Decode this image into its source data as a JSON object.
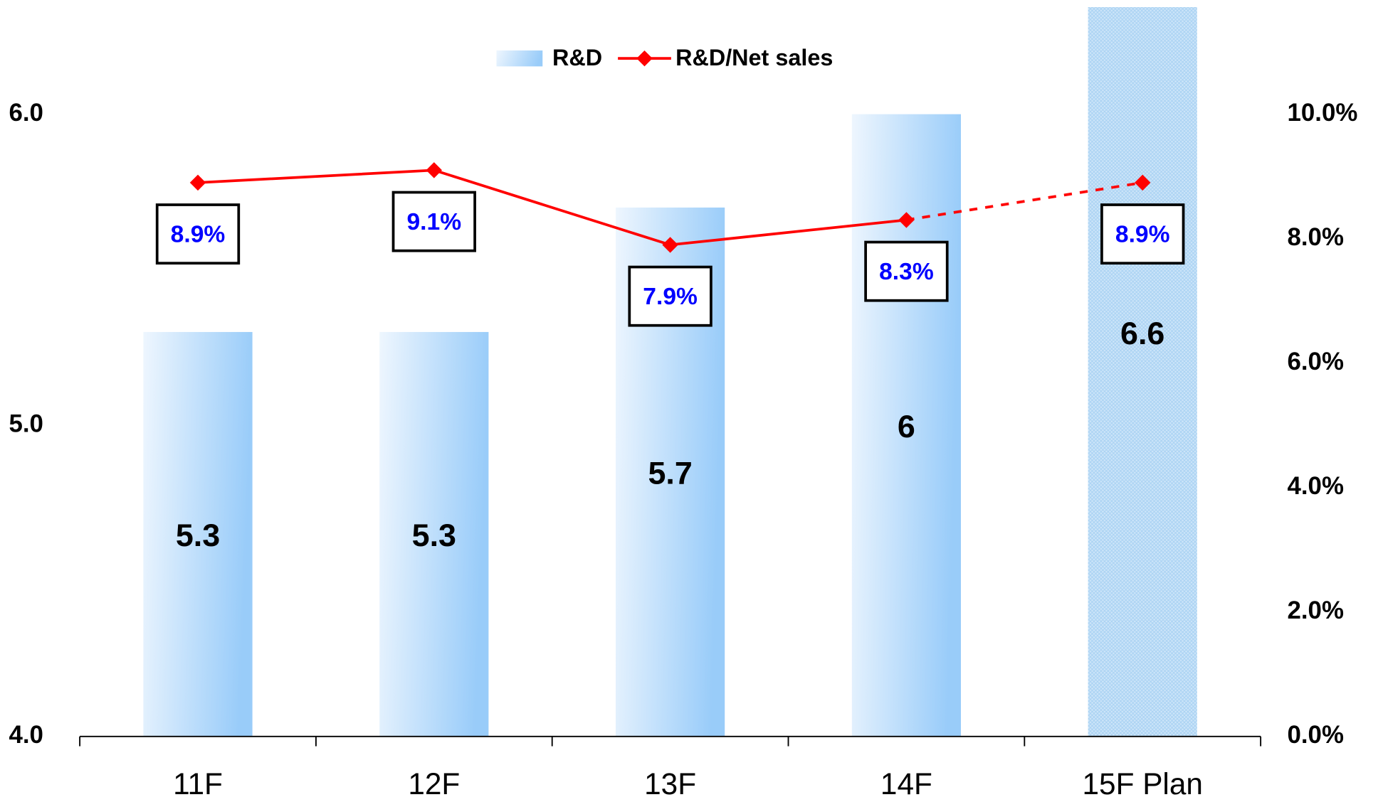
{
  "chart_data": {
    "type": "bar_line",
    "categories": [
      "11F",
      "12F",
      "13F",
      "14F",
      "15F Plan"
    ],
    "series": [
      {
        "name": "R&D",
        "type": "bar",
        "color": "#99ccf9",
        "values": [
          5.3,
          5.3,
          5.7,
          6.0,
          6.6
        ],
        "patterned_index": 4
      },
      {
        "name": "R&D/Net sales",
        "type": "line",
        "axis": "y2",
        "color": "#ff0000",
        "values": [
          8.9,
          9.1,
          7.9,
          8.3,
          8.9
        ],
        "value_labels": [
          "8.9%",
          "9.1%",
          "7.9%",
          "8.3%",
          "8.9%"
        ],
        "dash_after": 3
      }
    ],
    "ylim": [
      4.0,
      6.35
    ],
    "yticks": [
      {
        "value": 4,
        "label": "4.0"
      },
      {
        "value": 5,
        "label": "5.0"
      },
      {
        "value": 6,
        "label": "6.0"
      }
    ],
    "y2lim": [
      0,
      11.75
    ],
    "y2ticks": [
      {
        "value": 0,
        "label": "0.0%"
      },
      {
        "value": 2,
        "label": "2.0%"
      },
      {
        "value": 4,
        "label": "4.0%"
      },
      {
        "value": 6,
        "label": "6.0%"
      },
      {
        "value": 8,
        "label": "8.0%"
      },
      {
        "value": 10,
        "label": "10.0%"
      }
    ],
    "grid": false,
    "legend": "top"
  }
}
